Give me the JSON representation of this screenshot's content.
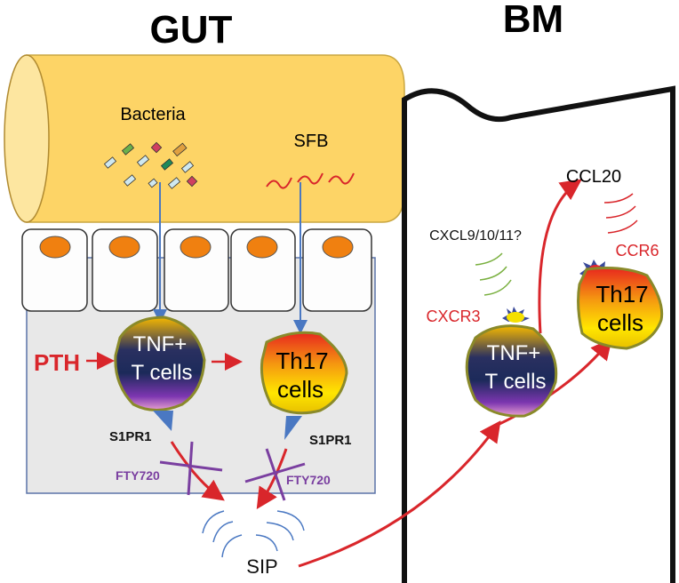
{
  "gut": {
    "title": "GUT",
    "bacteria": "Bacteria",
    "sfb": "SFB",
    "pth": "PTH",
    "tnf_cell": [
      "TNF+",
      "T cells"
    ],
    "th17_cell": [
      "Th17",
      "cells"
    ],
    "s1pr1": "S1PR1",
    "fty720": "FTY720",
    "sip": "SIP"
  },
  "bm": {
    "title": "BM",
    "ccl20": "CCL20",
    "cxcl": "CXCL9/10/11?",
    "cxcr3": "CXCR3",
    "ccr6": "CCR6",
    "tnf_cell": [
      "TNF+",
      "T cells"
    ],
    "th17_cell": [
      "Th17",
      "cells"
    ]
  },
  "colors": {
    "gut_lumen": "#FDD466",
    "arrow_red": "#d9262b",
    "arrow_blue": "#4a78c2",
    "fty720": "#7a3fa0"
  }
}
